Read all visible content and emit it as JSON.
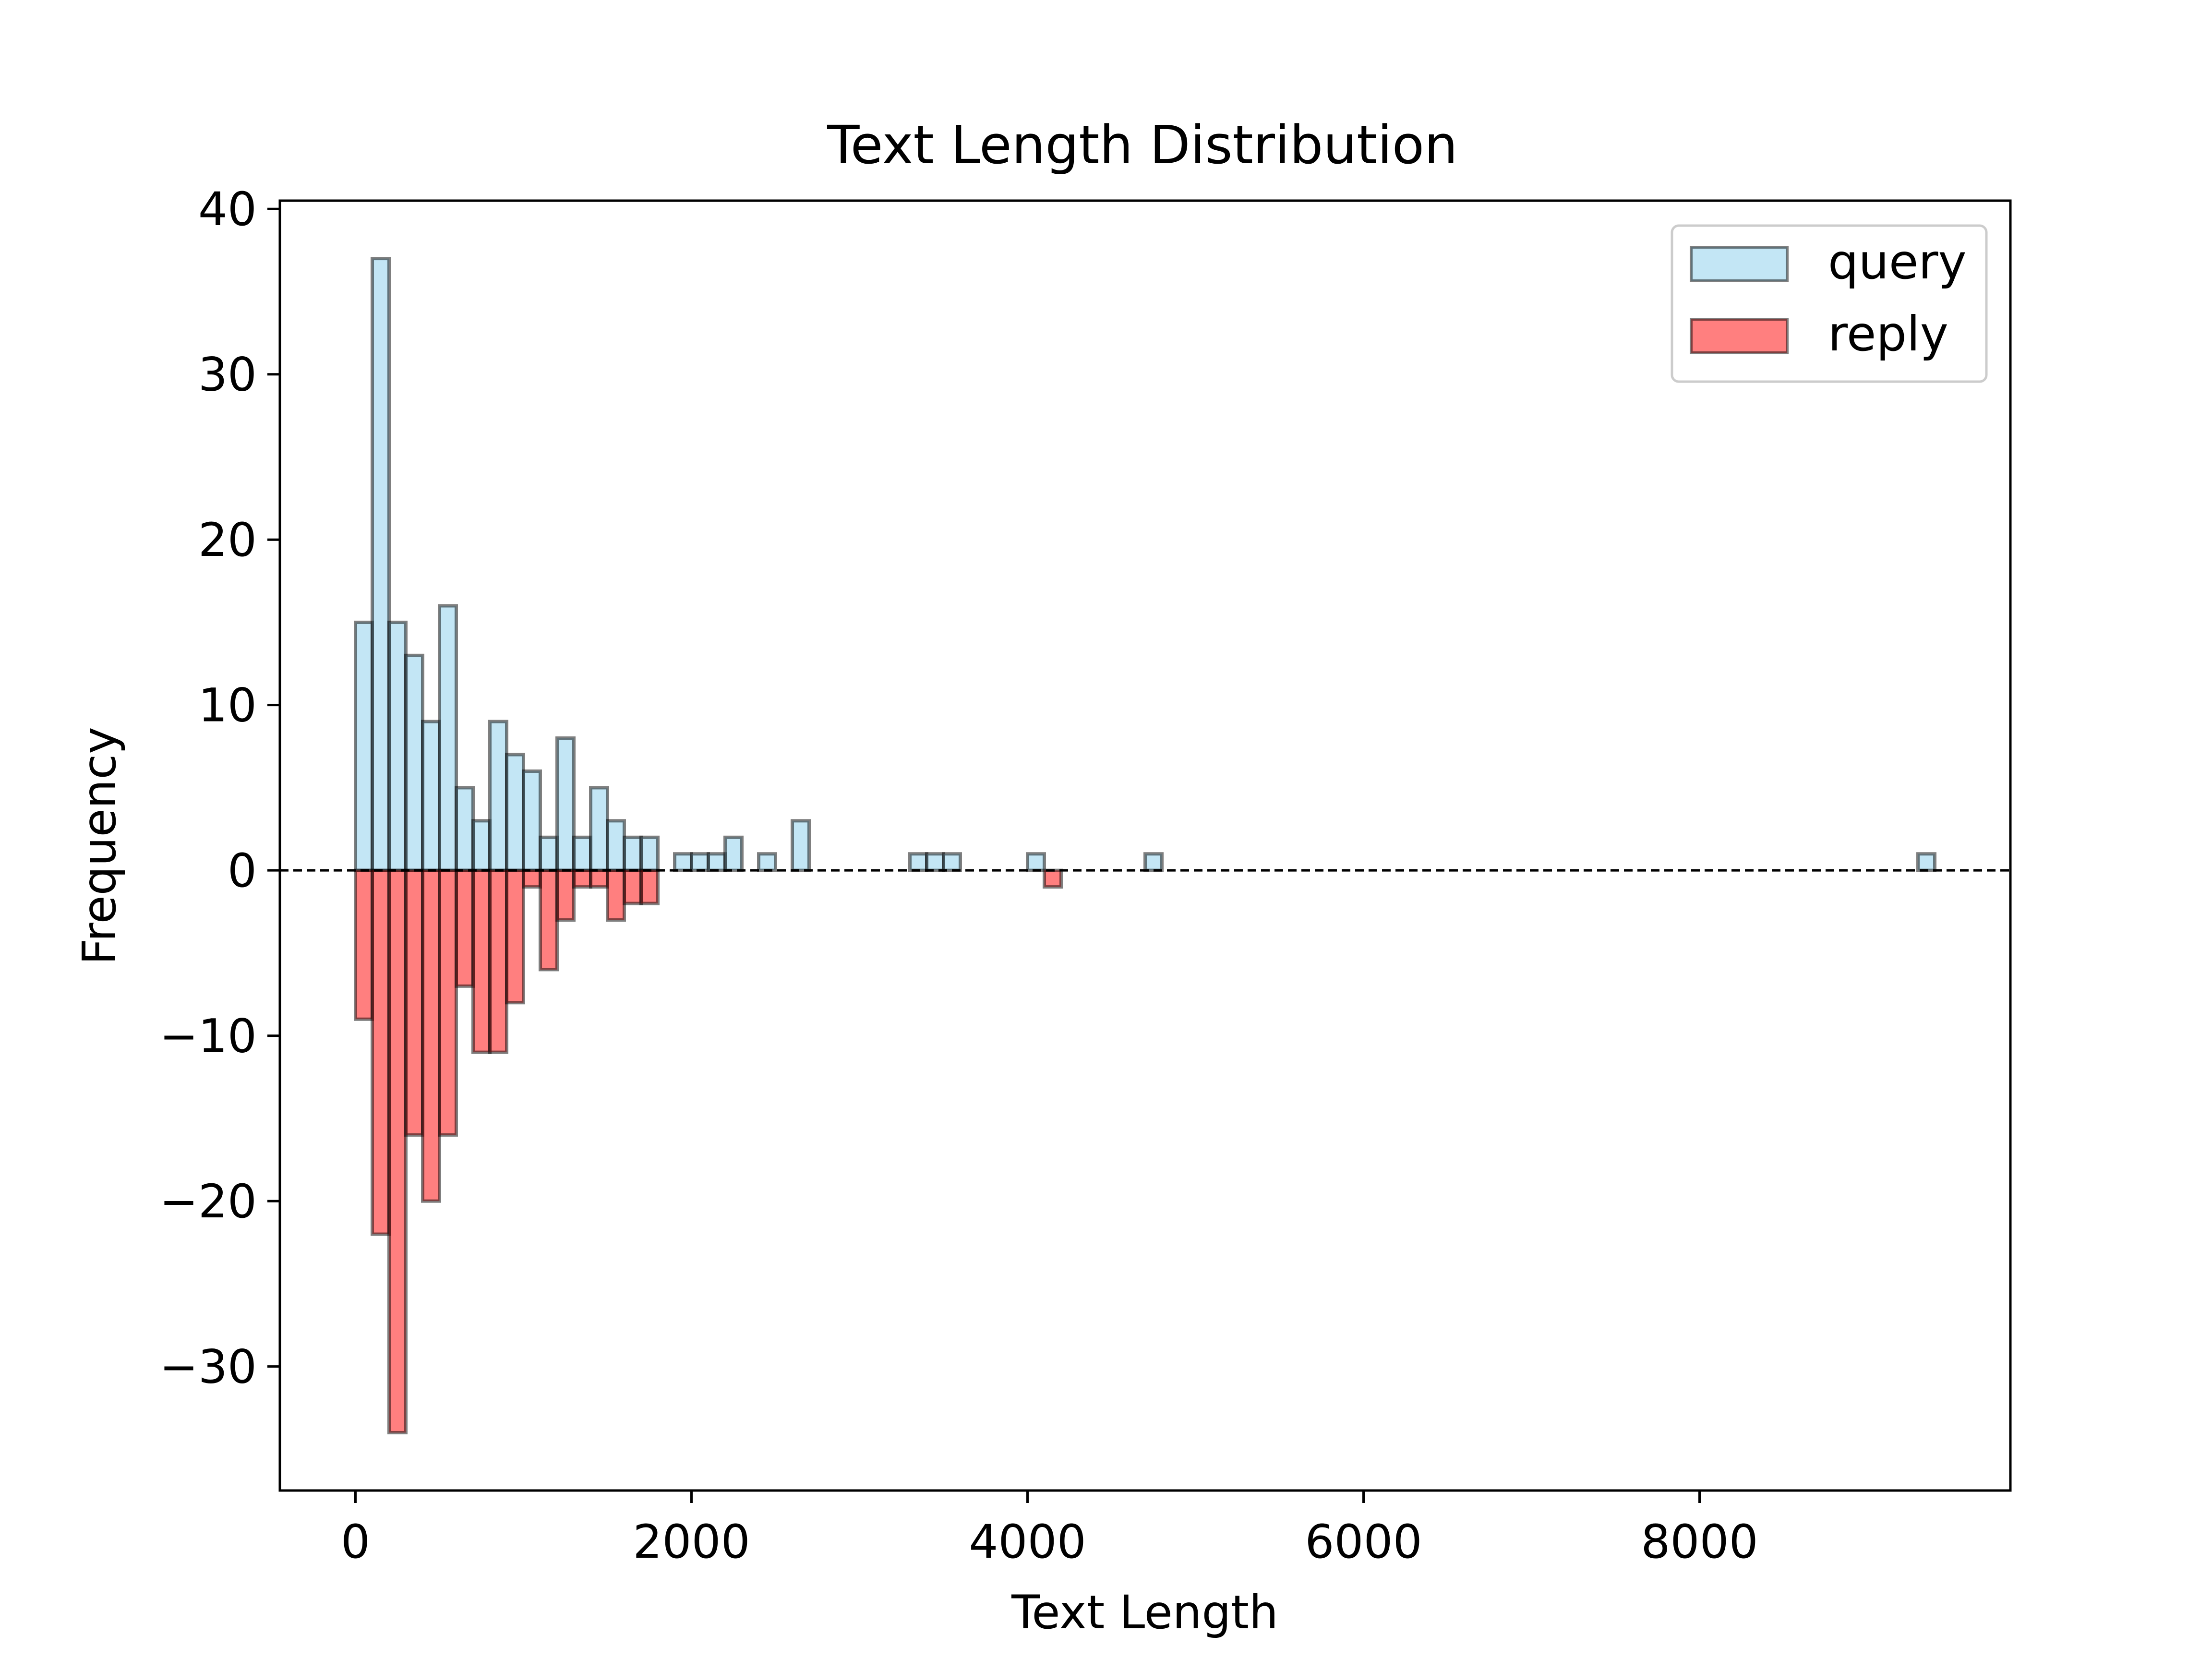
{
  "chart_data": {
    "type": "bar",
    "title": "Text Length Distribution",
    "xlabel": "Text Length",
    "ylabel": "Frequency",
    "xlim": [
      -450,
      9850
    ],
    "ylim": [
      -37.5,
      40.5
    ],
    "xticks": [
      0,
      2000,
      4000,
      6000,
      8000
    ],
    "xtick_labels": [
      "0",
      "2000",
      "4000",
      "6000",
      "8000"
    ],
    "yticks": [
      -30,
      -20,
      -10,
      0,
      10,
      20,
      30,
      40
    ],
    "ytick_labels": [
      "−30",
      "−20",
      "−10",
      "0",
      "10",
      "20",
      "30",
      "40"
    ],
    "bin_width": 100,
    "legend_position": "top-right",
    "grid": false,
    "baseline_style": "dashed",
    "series": [
      {
        "name": "query",
        "color": "#87ceeb",
        "direction": "up",
        "bin_starts": [
          0,
          100,
          200,
          300,
          400,
          500,
          600,
          700,
          800,
          900,
          1000,
          1100,
          1200,
          1300,
          1400,
          1500,
          1600,
          1700,
          1900,
          2000,
          2100,
          2200,
          2400,
          2600,
          3300,
          3400,
          3500,
          4000,
          4700,
          9300
        ],
        "values": [
          15,
          37,
          15,
          13,
          9,
          16,
          5,
          3,
          9,
          7,
          6,
          2,
          8,
          2,
          5,
          3,
          2,
          2,
          1,
          1,
          1,
          2,
          1,
          3,
          1,
          1,
          1,
          1,
          1,
          1
        ]
      },
      {
        "name": "reply",
        "color": "#ff0000",
        "direction": "down",
        "bin_starts": [
          0,
          100,
          200,
          300,
          400,
          500,
          600,
          700,
          800,
          900,
          1000,
          1100,
          1200,
          1300,
          1400,
          1500,
          1600,
          1700,
          4100
        ],
        "values": [
          9,
          22,
          34,
          16,
          20,
          16,
          7,
          11,
          11,
          8,
          1,
          6,
          3,
          1,
          1,
          3,
          2,
          2,
          1
        ]
      }
    ]
  }
}
